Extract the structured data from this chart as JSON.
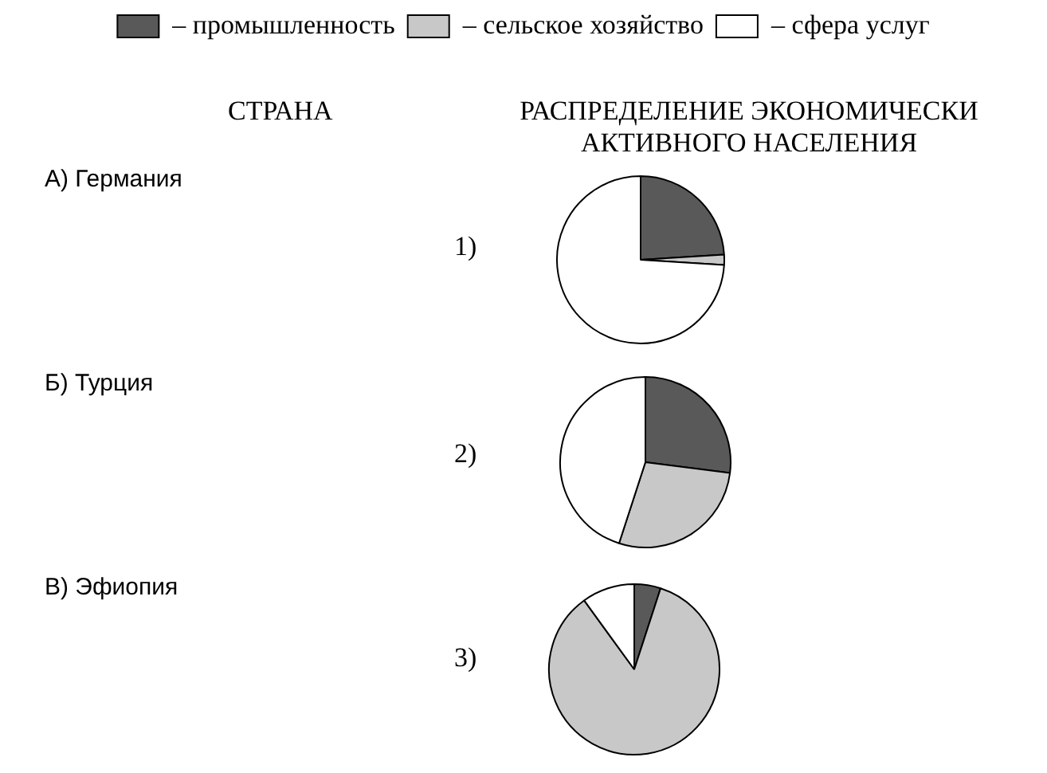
{
  "chart_data": [
    {
      "type": "pie",
      "title": "1)",
      "categories": [
        "– промышленность",
        "– сельское хозяйство",
        "– сфера услуг"
      ],
      "values": [
        24,
        2,
        74
      ],
      "colors": [
        "#595959",
        "#c8c8c8",
        "#ffffff"
      ],
      "legend": "top",
      "annotations": [
        "СТРАНА",
        "РАСПРЕДЕЛЕНИЕ ЭКОНОМИЧЕСКИ АКТИВНОГО НАСЕЛЕНИЯ",
        "А) Германия"
      ]
    },
    {
      "type": "pie",
      "title": "2)",
      "categories": [
        null,
        null,
        null
      ],
      "values": [
        27,
        28,
        45
      ],
      "colors": [
        "#595959",
        "#c8c8c8",
        "#ffffff"
      ],
      "annotations": [
        "Б) Турция"
      ]
    },
    {
      "type": "pie",
      "title": "3)",
      "categories": [
        null,
        null,
        null
      ],
      "values": [
        5,
        85,
        10
      ],
      "colors": [
        "#595959",
        "#c8c8c8",
        "#ffffff"
      ],
      "annotations": [
        "В) Эфиопия"
      ]
    }
  ]
}
